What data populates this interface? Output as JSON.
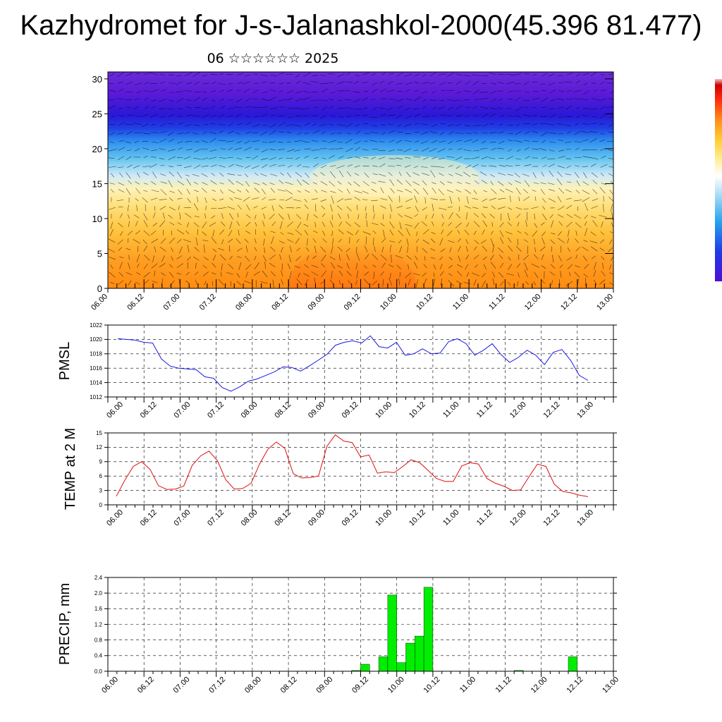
{
  "title": "Kazhydromet for J-s-Jalanashkol-2000(45.396 81.477)",
  "subtitle": "06 ☆☆☆☆☆☆ 2025",
  "time_labels": [
    "06.00",
    "06.12",
    "07.00",
    "07.12",
    "08.00",
    "08.12",
    "09.00",
    "09.12",
    "10.00",
    "10.12",
    "11.00",
    "11.12",
    "12.00",
    "12.12",
    "13.00"
  ],
  "colors": {
    "pmsl": "#1a1adf",
    "temp": "#e01010",
    "precip": "#00ee00",
    "grid": "#000000"
  },
  "chart_data": [
    {
      "type": "heatmap",
      "title": "",
      "xlabel": "",
      "ylabel": "",
      "ylim": [
        0,
        31
      ],
      "yticks": [
        0,
        5,
        10,
        15,
        20,
        25,
        30
      ],
      "x": [
        "06.00",
        "06.12",
        "07.00",
        "07.12",
        "08.00",
        "08.12",
        "09.00",
        "09.12",
        "10.00",
        "10.12",
        "11.00",
        "11.12",
        "12.00",
        "12.12",
        "13.00"
      ],
      "description_free": true,
      "colorbar": [
        "#4b0fd6",
        "#1e3ce6",
        "#2aa6f0",
        "#9fdcf5",
        "#ffffff",
        "#ffef9a",
        "#ffd24a",
        "#ff9a1a",
        "#ff4a10",
        "#d80000"
      ],
      "overlay": "wind vectors"
    },
    {
      "type": "line",
      "ylabel": "PMSL",
      "ylim": [
        1012,
        1022
      ],
      "yticks": [
        1012,
        1014,
        1016,
        1018,
        1020,
        1022
      ],
      "x_step_hours": 3,
      "series": [
        {
          "values": [
            1020.1,
            1020.0,
            1019.9,
            1019.6,
            1019.5,
            1017.3,
            1016.3,
            1016.0,
            1015.9,
            1015.8,
            1014.8,
            1014.6,
            1013.3,
            1012.8,
            1013.4,
            1014.2,
            1014.5,
            1015.0,
            1015.5,
            1016.2,
            1016.1,
            1015.6,
            1016.3,
            1017.1,
            1017.9,
            1019.2,
            1019.6,
            1019.8,
            1019.5,
            1020.5,
            1019.0,
            1018.8,
            1019.6,
            1017.8,
            1018.0,
            1018.7,
            1018.0,
            1018.1,
            1019.7,
            1020.1,
            1019.4,
            1017.8,
            1018.5,
            1019.4,
            1017.9,
            1016.8,
            1017.5,
            1018.5,
            1017.8,
            1016.5,
            1018.2,
            1018.6,
            1017.1,
            1015.0,
            1014.3
          ]
        }
      ]
    },
    {
      "type": "line",
      "ylabel": "TEMP at 2 M",
      "ylim": [
        0,
        15
      ],
      "yticks": [
        0,
        3,
        6,
        9,
        12,
        15
      ],
      "x_step_hours": 3,
      "series": [
        {
          "values": [
            1.8,
            5.1,
            8.0,
            9.0,
            7.4,
            4.0,
            3.2,
            3.3,
            3.9,
            8.2,
            10.2,
            11.2,
            9.2,
            5.2,
            3.3,
            3.4,
            4.5,
            8.5,
            11.6,
            13.1,
            11.8,
            6.5,
            5.6,
            5.7,
            6.0,
            12.2,
            14.6,
            13.3,
            13.0,
            10.0,
            10.4,
            6.6,
            6.9,
            6.7,
            8.0,
            9.4,
            8.8,
            7.2,
            5.5,
            4.9,
            4.9,
            8.1,
            8.8,
            8.5,
            5.5,
            4.5,
            3.9,
            3.0,
            3.1,
            5.9,
            8.5,
            8.0,
            4.3,
            2.8,
            2.5,
            2.0,
            1.7
          ]
        }
      ]
    },
    {
      "type": "bar",
      "ylabel": "PRECIP, mm",
      "ylim": [
        0,
        2.4
      ],
      "yticks": [
        "0.0",
        "0.4",
        "0.8",
        "1.2",
        "1.6",
        "2.0",
        "2.4"
      ],
      "x_step_hours": 3,
      "values": [
        0,
        0,
        0,
        0,
        0,
        0,
        0,
        0,
        0,
        0,
        0,
        0,
        0,
        0,
        0,
        0,
        0,
        0,
        0,
        0,
        0,
        0,
        0,
        0,
        0,
        0,
        0,
        0.02,
        0.18,
        0,
        0.37,
        1.95,
        0.22,
        0.72,
        0.9,
        2.15,
        0,
        0,
        0,
        0,
        0,
        0,
        0,
        0,
        0,
        0.02,
        0,
        0,
        0,
        0,
        0,
        0.37,
        0,
        0,
        0,
        0
      ]
    }
  ]
}
